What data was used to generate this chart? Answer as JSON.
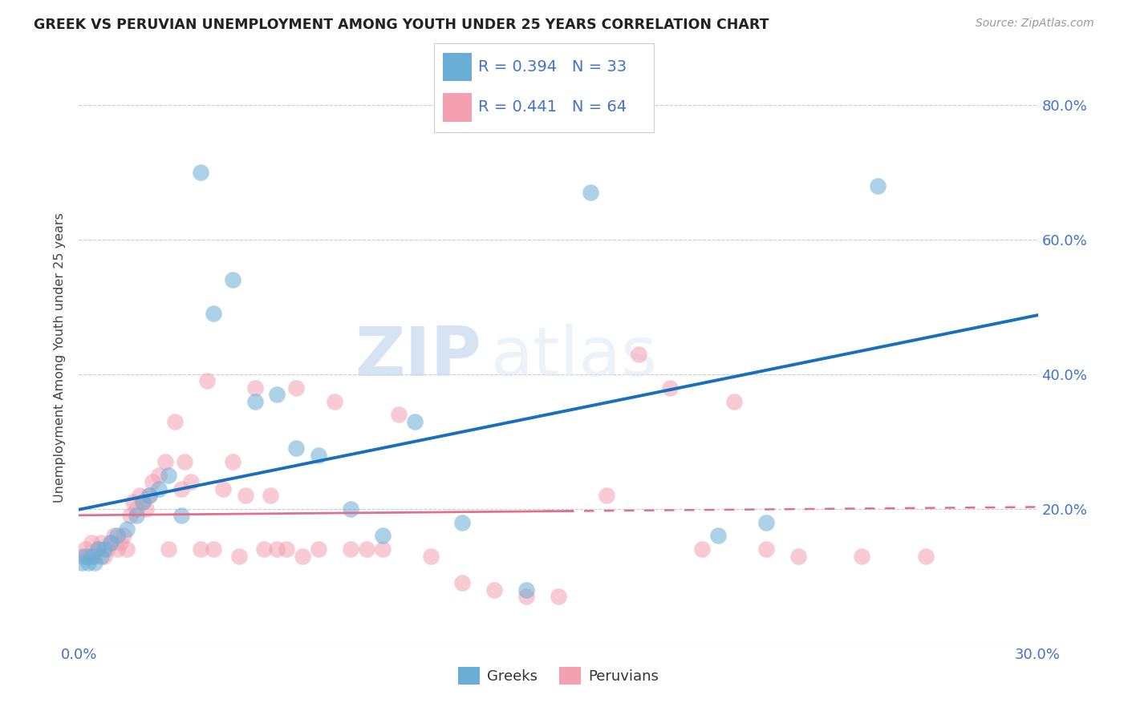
{
  "title": "GREEK VS PERUVIAN UNEMPLOYMENT AMONG YOUTH UNDER 25 YEARS CORRELATION CHART",
  "source": "Source: ZipAtlas.com",
  "ylabel": "Unemployment Among Youth under 25 years",
  "xlim": [
    0.0,
    0.3
  ],
  "ylim": [
    0.0,
    0.85
  ],
  "greek_color": "#6aaed6",
  "peruvian_color": "#f4a0b0",
  "greek_line_color": "#1a6fbd",
  "peruvian_line_color": "#e07090",
  "greek_R": 0.394,
  "greek_N": 33,
  "peruvian_R": 0.441,
  "peruvian_N": 64,
  "greek_x": [
    0.001,
    0.002,
    0.003,
    0.004,
    0.005,
    0.006,
    0.007,
    0.008,
    0.01,
    0.012,
    0.015,
    0.018,
    0.02,
    0.022,
    0.025,
    0.028,
    0.032,
    0.038,
    0.042,
    0.048,
    0.055,
    0.062,
    0.068,
    0.075,
    0.085,
    0.095,
    0.105,
    0.12,
    0.14,
    0.16,
    0.2,
    0.215,
    0.25
  ],
  "greek_y": [
    0.12,
    0.13,
    0.12,
    0.13,
    0.12,
    0.14,
    0.13,
    0.14,
    0.15,
    0.16,
    0.17,
    0.19,
    0.21,
    0.22,
    0.23,
    0.25,
    0.19,
    0.7,
    0.49,
    0.54,
    0.36,
    0.37,
    0.29,
    0.28,
    0.2,
    0.16,
    0.33,
    0.18,
    0.08,
    0.67,
    0.16,
    0.18,
    0.68
  ],
  "peruvian_x": [
    0.001,
    0.002,
    0.003,
    0.004,
    0.005,
    0.006,
    0.007,
    0.008,
    0.009,
    0.01,
    0.011,
    0.012,
    0.013,
    0.014,
    0.015,
    0.016,
    0.017,
    0.018,
    0.019,
    0.02,
    0.021,
    0.022,
    0.023,
    0.025,
    0.027,
    0.028,
    0.03,
    0.032,
    0.033,
    0.035,
    0.038,
    0.04,
    0.042,
    0.045,
    0.048,
    0.05,
    0.052,
    0.055,
    0.058,
    0.06,
    0.062,
    0.065,
    0.068,
    0.07,
    0.075,
    0.08,
    0.085,
    0.09,
    0.095,
    0.1,
    0.11,
    0.12,
    0.13,
    0.14,
    0.15,
    0.165,
    0.175,
    0.185,
    0.195,
    0.205,
    0.215,
    0.225,
    0.245,
    0.265
  ],
  "peruvian_y": [
    0.13,
    0.14,
    0.13,
    0.15,
    0.13,
    0.14,
    0.15,
    0.13,
    0.14,
    0.15,
    0.16,
    0.14,
    0.15,
    0.16,
    0.14,
    0.19,
    0.21,
    0.2,
    0.22,
    0.21,
    0.2,
    0.22,
    0.24,
    0.25,
    0.27,
    0.14,
    0.33,
    0.23,
    0.27,
    0.24,
    0.14,
    0.39,
    0.14,
    0.23,
    0.27,
    0.13,
    0.22,
    0.38,
    0.14,
    0.22,
    0.14,
    0.14,
    0.38,
    0.13,
    0.14,
    0.36,
    0.14,
    0.14,
    0.14,
    0.34,
    0.13,
    0.09,
    0.08,
    0.07,
    0.07,
    0.22,
    0.43,
    0.38,
    0.14,
    0.36,
    0.14,
    0.13,
    0.13,
    0.13
  ],
  "watermark_zip": "ZIP",
  "watermark_atlas": "atlas",
  "background_color": "#ffffff",
  "grid_color": "#cccccc"
}
